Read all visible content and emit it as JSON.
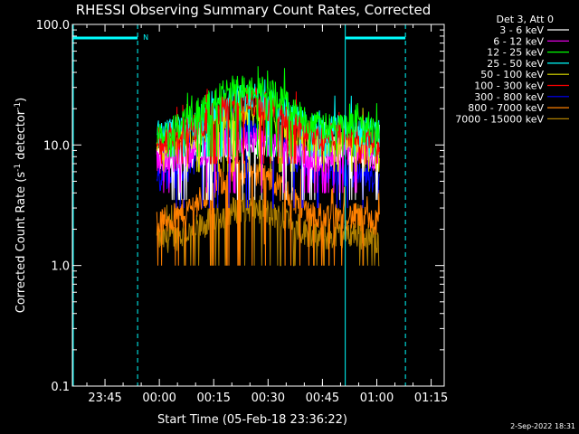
{
  "chart_data": {
    "type": "line",
    "title": "RHESSI Observing Summary Count Rates, Corrected",
    "xlabel": "Start Time (05-Feb-18 23:36:22)",
    "ylabel": "Corrected Count Rate (s",
    "ylabel_sup": "-1",
    "ylabel_mid": " detector",
    "ylabel_end": ")",
    "y_scale": "log",
    "ylim": [
      0.1,
      100.0
    ],
    "xlim_minutes_from_start": [
      -0.4,
      102.2
    ],
    "x_ticks": [
      {
        "label": "23:45",
        "minute": 8.6
      },
      {
        "label": "00:00",
        "minute": 23.6
      },
      {
        "label": "00:15",
        "minute": 38.6
      },
      {
        "label": "00:30",
        "minute": 53.6
      },
      {
        "label": "00:45",
        "minute": 68.6
      },
      {
        "label": "01:00",
        "minute": 83.6
      },
      {
        "label": "01:15",
        "minute": 98.6
      }
    ],
    "y_ticks": [
      {
        "label": "0.1",
        "value": 0.1
      },
      {
        "label": "1.0",
        "value": 1.0
      },
      {
        "label": "10.0",
        "value": 10.0
      },
      {
        "label": "100.0",
        "value": 100.0
      }
    ],
    "legend_header": "Det 3, Att 0",
    "legend_placement": "top-right outside",
    "series": [
      {
        "name": "3 - 6 keV",
        "color": "#ffffff",
        "base": 8.0,
        "peak": 10,
        "floor": 3.5,
        "ceil": 16
      },
      {
        "name": "6 - 12 keV",
        "color": "#ff00ff",
        "base": 7.5,
        "peak": 11,
        "floor": 4.0,
        "ceil": 14
      },
      {
        "name": "12 - 25 keV",
        "color": "#00ff00",
        "base": 12.5,
        "peak": 31,
        "floor": 8.0,
        "ceil": 45
      },
      {
        "name": "25 - 50 keV",
        "color": "#00ffff",
        "base": 12.0,
        "peak": 25,
        "floor": 8.0,
        "ceil": 35
      },
      {
        "name": "50 - 100 keV",
        "color": "#e0e000",
        "base": 9.5,
        "peak": 19,
        "floor": 6.0,
        "ceil": 28
      },
      {
        "name": "100 - 300 keV",
        "color": "#ff0000",
        "base": 10.5,
        "peak": 23,
        "floor": 7.0,
        "ceil": 30
      },
      {
        "name": "300 - 800 keV",
        "color": "#0000ff",
        "base": 5.0,
        "peak": 13,
        "floor": 3.0,
        "ceil": 20
      },
      {
        "name": "800 - 7000 keV",
        "color": "#ff8000",
        "base": 2.2,
        "peak": 6,
        "floor": 1.0,
        "ceil": 9
      },
      {
        "name": "7000 - 15000 keV",
        "color": "#b08000",
        "base": 1.6,
        "peak": 3,
        "floor": 1.0,
        "ceil": 4
      }
    ],
    "observing_window_minutes": [
      22.9,
      84.3
    ],
    "flare_peak_minute": 48.0,
    "flare_sigma_minutes": 9.0,
    "night_intervals_minutes": [
      [
        -0.4,
        17.6
      ],
      [
        74.9,
        102.2
      ]
    ],
    "saa_marker": "N",
    "footer_date": "2-Sep-2022 18:31"
  }
}
